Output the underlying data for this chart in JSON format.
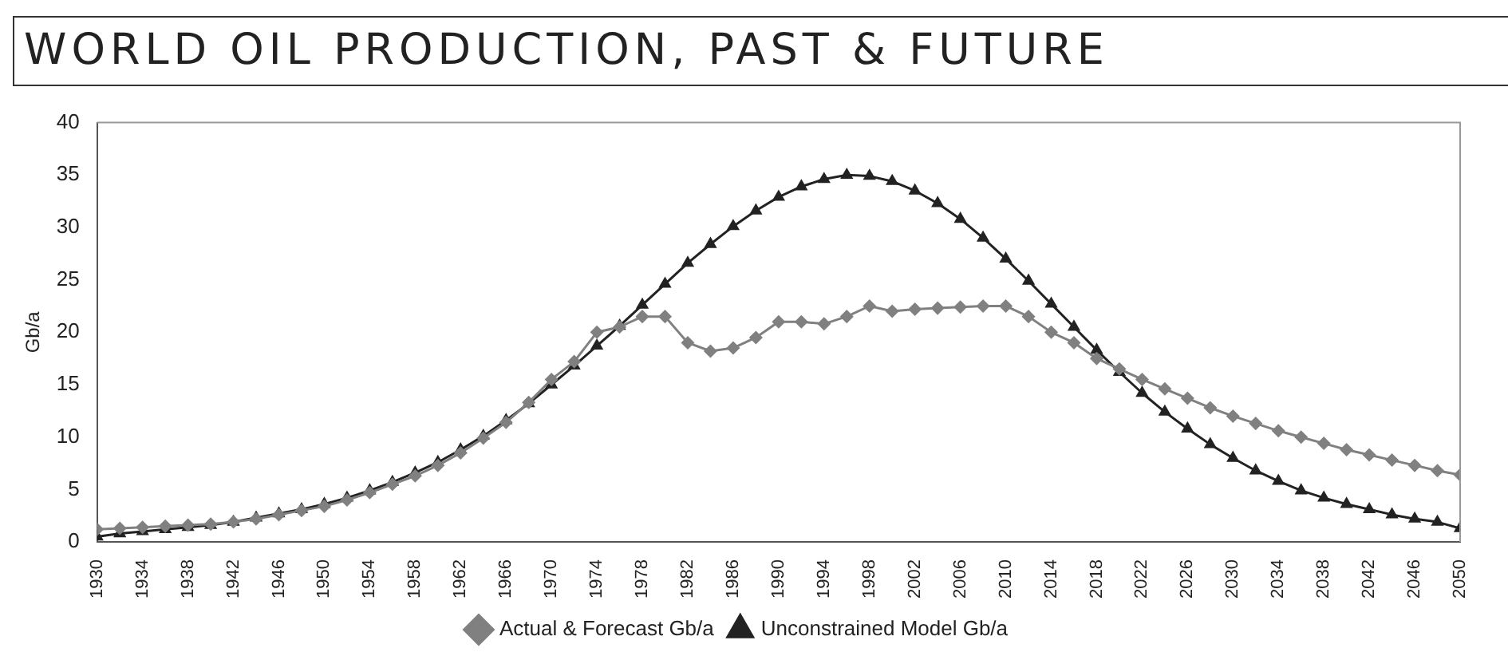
{
  "chart_data": {
    "type": "line",
    "title": "WORLD OIL PRODUCTION, PAST & FUTURE",
    "ylabel": "Gb/a",
    "x": [
      1930,
      1932,
      1934,
      1936,
      1938,
      1940,
      1942,
      1944,
      1946,
      1948,
      1950,
      1952,
      1954,
      1956,
      1958,
      1960,
      1962,
      1964,
      1966,
      1968,
      1970,
      1972,
      1974,
      1976,
      1978,
      1980,
      1982,
      1984,
      1986,
      1988,
      1990,
      1992,
      1994,
      1996,
      1998,
      2000,
      2002,
      2004,
      2006,
      2008,
      2010,
      2012,
      2014,
      2016,
      2018,
      2020,
      2022,
      2024,
      2026,
      2028,
      2030,
      2032,
      2034,
      2036,
      2038,
      2040,
      2042,
      2044,
      2046,
      2048,
      2050
    ],
    "series": [
      {
        "name": "Actual & Forecast Gb/a",
        "color": "#808080",
        "marker": "diamond",
        "values": [
          1.2,
          1.3,
          1.4,
          1.5,
          1.6,
          1.7,
          1.9,
          2.2,
          2.6,
          3.0,
          3.4,
          4.0,
          4.7,
          5.5,
          6.3,
          7.3,
          8.5,
          9.9,
          11.4,
          13.3,
          15.5,
          17.2,
          20,
          20.5,
          21.5,
          21.5,
          19,
          18.2,
          18.5,
          19.5,
          21,
          21,
          20.8,
          21.5,
          22.5,
          22,
          22.2,
          22.3,
          22.4,
          22.5,
          22.5,
          21.5,
          20,
          19,
          17.5,
          16.5,
          15.5,
          14.6,
          13.7,
          12.8,
          12,
          11.3,
          10.6,
          10,
          9.4,
          8.8,
          8.3,
          7.8,
          7.3,
          6.8,
          6.4
        ]
      },
      {
        "name": "Unconstrained Model Gb/a",
        "color": "#222222",
        "marker": "triangle",
        "values": [
          0.5,
          0.8,
          1.0,
          1.2,
          1.4,
          1.6,
          1.9,
          2.3,
          2.7,
          3.1,
          3.6,
          4.2,
          4.9,
          5.7,
          6.6,
          7.6,
          8.8,
          10.1,
          11.6,
          13.2,
          15,
          16.8,
          18.7,
          20.6,
          22.6,
          24.6,
          26.6,
          28.4,
          30.1,
          31.6,
          32.9,
          33.9,
          34.6,
          35,
          34.9,
          34.4,
          33.5,
          32.3,
          30.8,
          29,
          27,
          24.9,
          22.7,
          20.5,
          18.3,
          16.2,
          14.2,
          12.4,
          10.8,
          9.3,
          8.0,
          6.8,
          5.8,
          4.9,
          4.2,
          3.6,
          3.1,
          2.6,
          2.2,
          1.9,
          1.3
        ]
      }
    ],
    "xlim": [
      1930,
      2050
    ],
    "xticks": [
      1930,
      1934,
      1938,
      1942,
      1946,
      1950,
      1954,
      1958,
      1962,
      1966,
      1970,
      1974,
      1978,
      1982,
      1986,
      1990,
      1994,
      1998,
      2002,
      2006,
      2010,
      2014,
      2018,
      2022,
      2026,
      2030,
      2034,
      2038,
      2042,
      2046,
      2050
    ],
    "ylim": [
      0,
      40
    ],
    "yticks": [
      0,
      5,
      10,
      15,
      20,
      25,
      30,
      35,
      40
    ],
    "grid": false,
    "legend": "bottom",
    "line_style": "solid"
  }
}
